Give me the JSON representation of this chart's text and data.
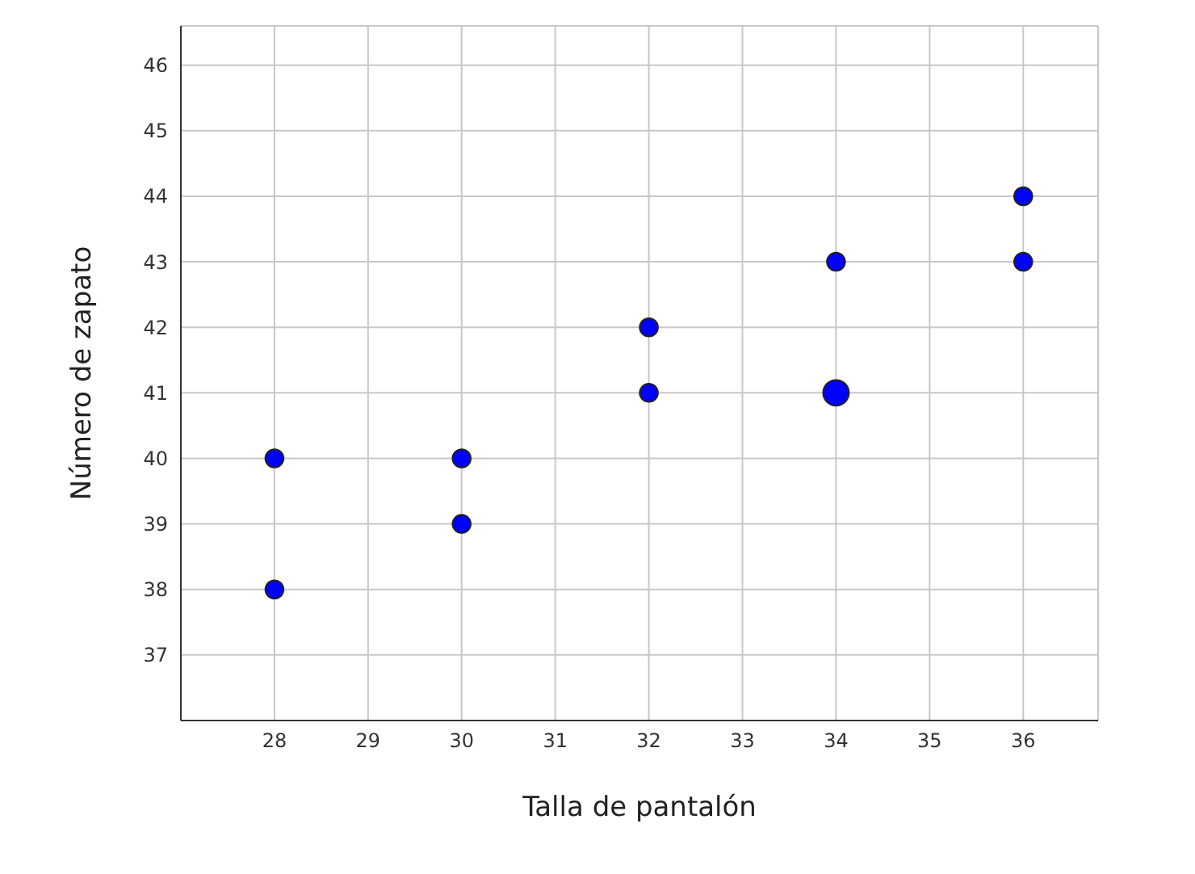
{
  "chart_data": {
    "type": "bubble",
    "xlabel": "Talla de pantalón",
    "ylabel": "Número de zapato",
    "x": [
      28,
      28,
      30,
      30,
      32,
      32,
      34,
      34,
      36,
      36
    ],
    "series": [
      {
        "color": "#0000ff",
        "values": [
          38,
          40,
          39,
          40,
          41,
          42,
          41,
          43,
          43,
          44
        ],
        "sizes": [
          0.5,
          0.5,
          0.5,
          0.5,
          0.5,
          0.5,
          1,
          0.5,
          0.5,
          0.5
        ]
      }
    ],
    "xlim": [
      27,
      36.8
    ],
    "xticks": [
      28,
      29,
      30,
      31,
      32,
      33,
      34,
      35,
      36
    ],
    "ylim": [
      36,
      46.6
    ],
    "yticks": [
      37,
      38,
      39,
      40,
      41,
      42,
      43,
      44,
      45,
      46
    ],
    "grid": true,
    "marker": "circle",
    "legend": false
  }
}
